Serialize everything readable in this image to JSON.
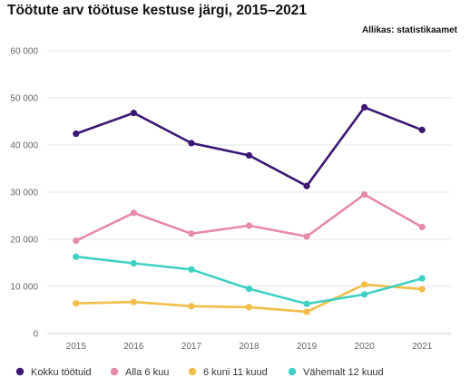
{
  "chart_data": {
    "type": "line",
    "title": "Töötute arv töötuse kestuse järgi, 2015–2021",
    "source": "Allikas: statistikaamet",
    "xlabel": "",
    "ylabel": "",
    "x": [
      "2015",
      "2016",
      "2017",
      "2018",
      "2019",
      "2020",
      "2021"
    ],
    "ylim": [
      0,
      60000
    ],
    "yticks": [
      0,
      10000,
      20000,
      30000,
      40000,
      50000,
      60000
    ],
    "ytick_labels": [
      "0",
      "10 000",
      "20 000",
      "30 000",
      "40 000",
      "50 000",
      "60 000"
    ],
    "grid": true,
    "legend_position": "bottom",
    "series": [
      {
        "name": "Kokku töötuid",
        "color": "#3b1873",
        "values": [
          42400,
          46800,
          40400,
          37800,
          31300,
          48000,
          43200
        ]
      },
      {
        "name": "Alla 6 kuu",
        "color": "#e58aa8",
        "values": [
          19700,
          25600,
          21200,
          22900,
          20600,
          29500,
          22600
        ]
      },
      {
        "name": "6 kuni 11 kuud",
        "color": "#f2bd48",
        "values": [
          6400,
          6700,
          5800,
          5600,
          4600,
          10400,
          9400
        ]
      },
      {
        "name": "Vähemalt 12 kuud",
        "color": "#3fd1c4",
        "values": [
          16300,
          14900,
          13600,
          9500,
          6300,
          8300,
          11700
        ]
      }
    ]
  }
}
